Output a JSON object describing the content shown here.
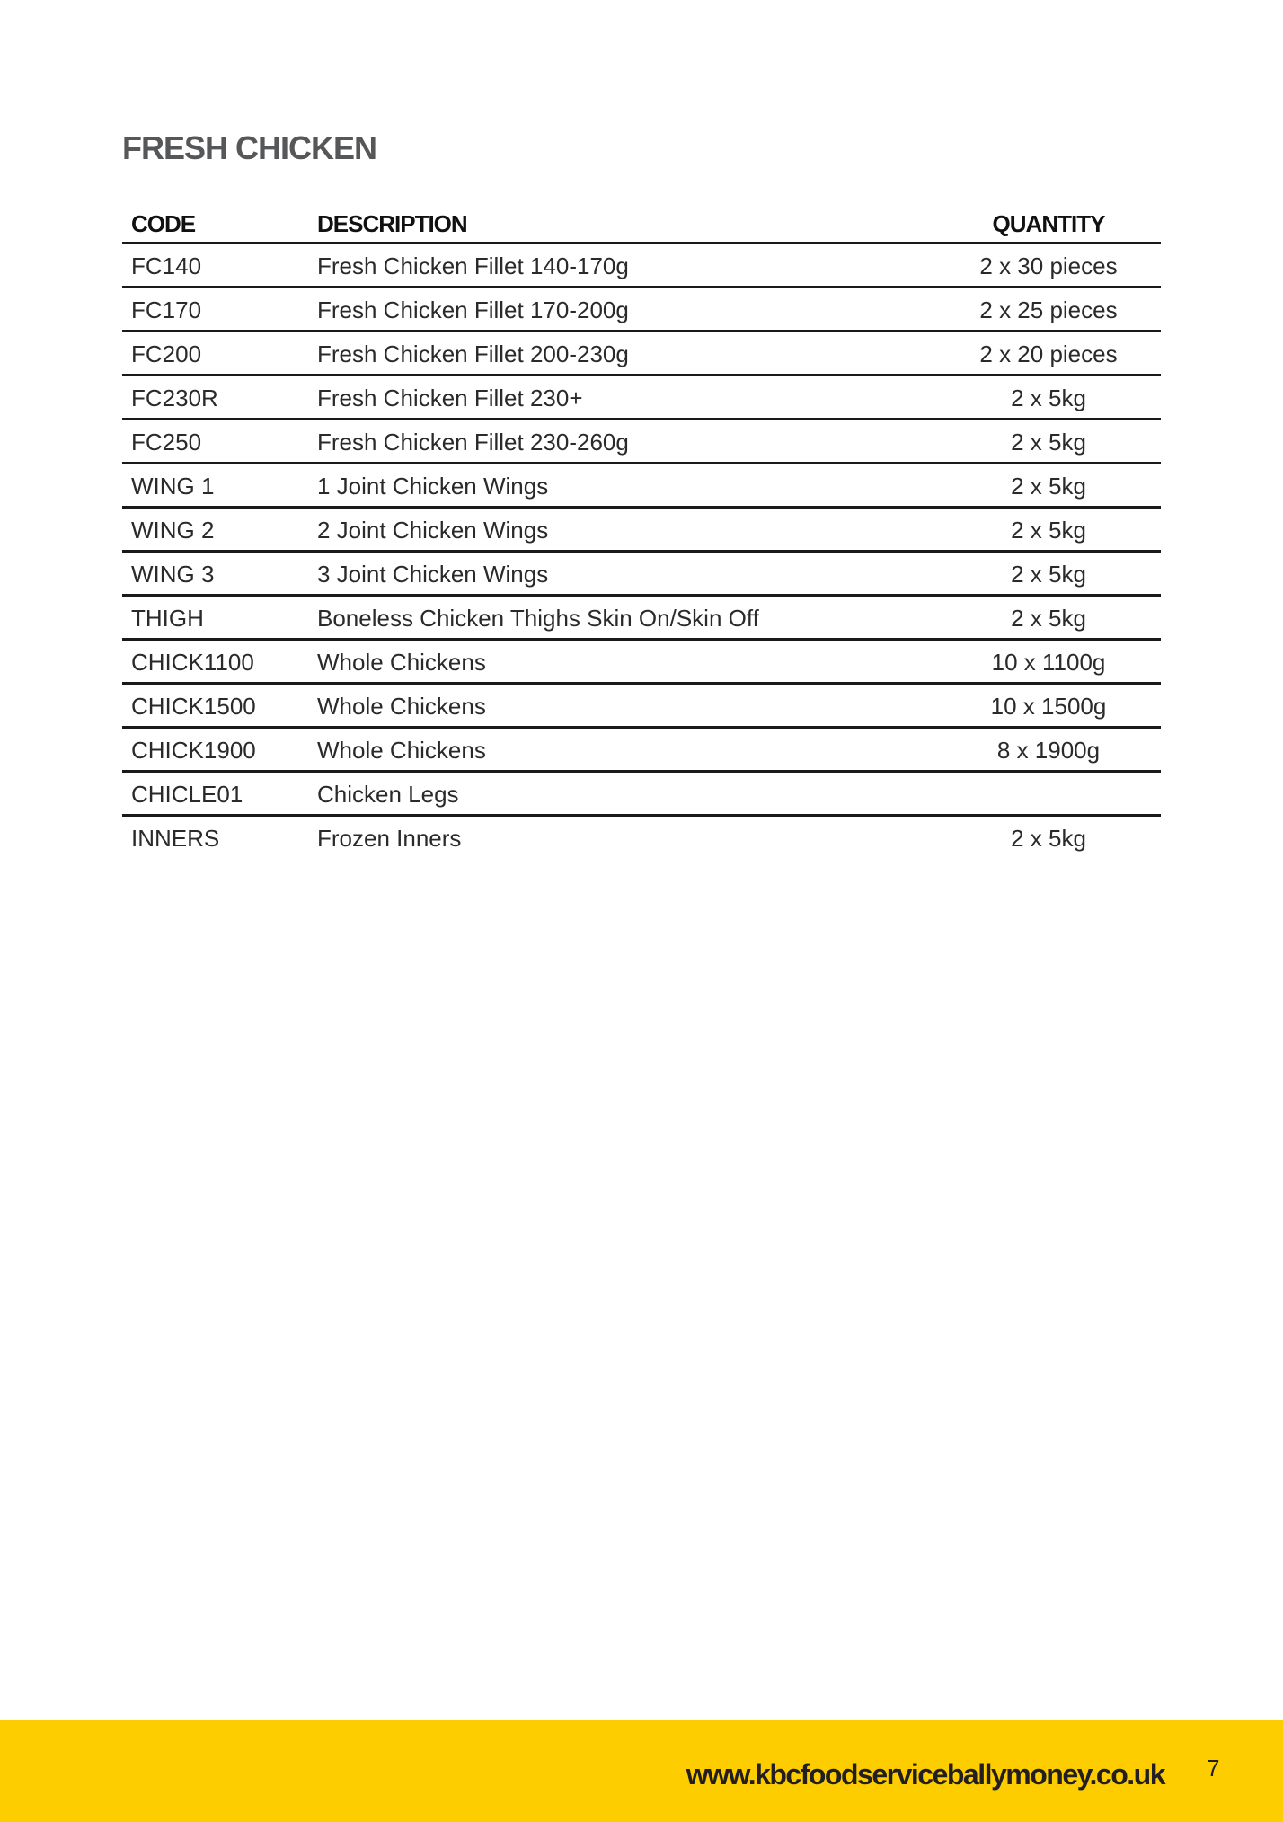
{
  "title": "FRESH CHICKEN",
  "table": {
    "headers": {
      "code": "CODE",
      "description": "DESCRIPTION",
      "quantity": "QUANTITY"
    },
    "rows": [
      {
        "code": "FC140",
        "description": "Fresh Chicken Fillet  140-170g",
        "quantity": "2 x 30 pieces"
      },
      {
        "code": "FC170",
        "description": "Fresh Chicken Fillet 170-200g",
        "quantity": "2 x 25 pieces"
      },
      {
        "code": "FC200",
        "description": "Fresh Chicken Fillet 200-230g",
        "quantity": "2 x 20 pieces"
      },
      {
        "code": "FC230R",
        "description": "Fresh Chicken Fillet 230+",
        "quantity": "2 x 5kg"
      },
      {
        "code": "FC250",
        "description": "Fresh Chicken Fillet 230-260g",
        "quantity": "2 x 5kg"
      },
      {
        "code": "WING 1",
        "description": "1 Joint Chicken Wings",
        "quantity": "2 x 5kg"
      },
      {
        "code": "WING 2",
        "description": "2 Joint Chicken Wings",
        "quantity": "2 x 5kg"
      },
      {
        "code": "WING 3",
        "description": "3 Joint Chicken Wings",
        "quantity": "2 x 5kg"
      },
      {
        "code": "THIGH",
        "description": "Boneless Chicken Thighs Skin On/Skin Off",
        "quantity": "2 x 5kg"
      },
      {
        "code": "CHICK1100",
        "description": "Whole Chickens",
        "quantity": "10 x 1100g"
      },
      {
        "code": "CHICK1500",
        "description": "Whole Chickens",
        "quantity": "10 x 1500g"
      },
      {
        "code": "CHICK1900",
        "description": "Whole Chickens",
        "quantity": "8 x 1900g"
      },
      {
        "code": "CHICLE01",
        "description": "Chicken Legs",
        "quantity": ""
      },
      {
        "code": "INNERS",
        "description": "Frozen Inners",
        "quantity": "2 x 5kg"
      }
    ]
  },
  "footer": {
    "url": "www.kbcfoodserviceballymoney.co.uk",
    "page_number": "7",
    "color": "#fdcd00"
  }
}
